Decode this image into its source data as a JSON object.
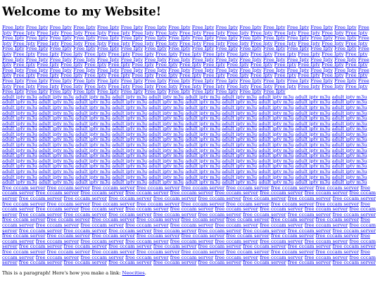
{
  "heading": "Welcome to my Website!",
  "link_groups": [
    {
      "label": "Free Iptv",
      "count": 198
    },
    {
      "label": "adult iptv m3u",
      "count": 170
    },
    {
      "label": "free cccam server",
      "count": 125
    }
  ],
  "footer": {
    "prefix": "This is a paragraph! Here's how you make a link: ",
    "link_text": "Neocities",
    "suffix": "."
  }
}
